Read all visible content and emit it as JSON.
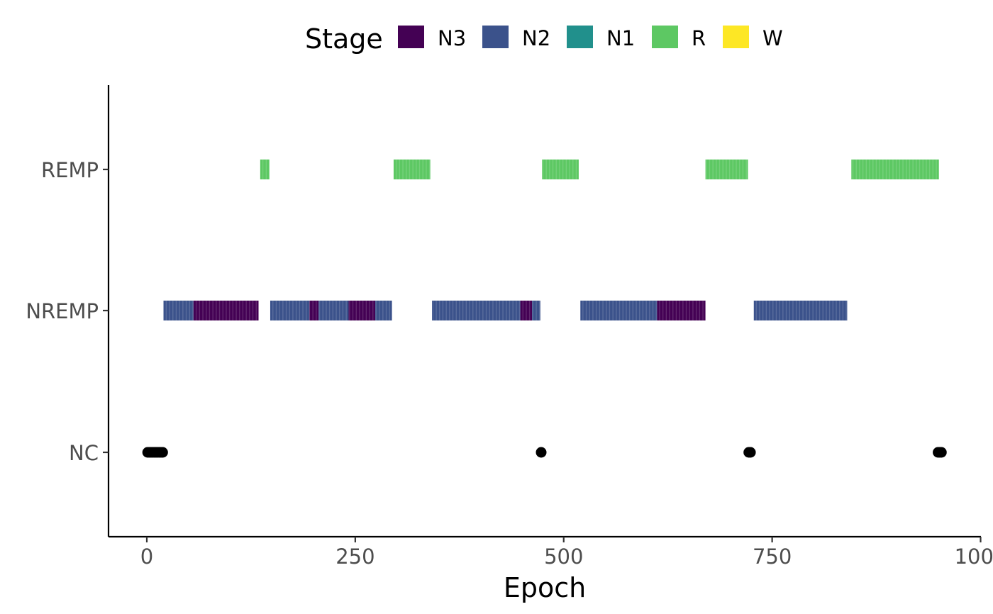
{
  "chart_data": {
    "type": "bar",
    "xlabel": "Epoch",
    "ylabel": "",
    "xlim": [
      -15,
      1000
    ],
    "x_ticks": [
      0,
      250,
      500,
      750,
      1000
    ],
    "x_tick_labels": [
      "0",
      "250",
      "500",
      "750",
      "1000"
    ],
    "categories": [
      "NC",
      "NREMP",
      "REMP"
    ],
    "grid": false,
    "legend": {
      "title": "Stage",
      "position": "top",
      "entries": [
        {
          "label": "N3",
          "color": "#440154"
        },
        {
          "label": "N2",
          "color": "#3B528B"
        },
        {
          "label": "N1",
          "color": "#21908C"
        },
        {
          "label": "R",
          "color": "#5DC863"
        },
        {
          "label": "W",
          "color": "#FDE725"
        }
      ]
    },
    "segments": [
      {
        "period": "NREMP",
        "stage": "N2",
        "start": 20,
        "end": 56
      },
      {
        "period": "NREMP",
        "stage": "N3",
        "start": 56,
        "end": 134
      },
      {
        "period": "REMP",
        "stage": "R",
        "start": 136,
        "end": 147
      },
      {
        "period": "NREMP",
        "stage": "N2",
        "start": 148,
        "end": 195
      },
      {
        "period": "NREMP",
        "stage": "N3",
        "start": 195,
        "end": 206
      },
      {
        "period": "NREMP",
        "stage": "N2",
        "start": 206,
        "end": 242
      },
      {
        "period": "NREMP",
        "stage": "N3",
        "start": 242,
        "end": 274
      },
      {
        "period": "NREMP",
        "stage": "N2",
        "start": 274,
        "end": 294
      },
      {
        "period": "REMP",
        "stage": "R",
        "start": 296,
        "end": 340
      },
      {
        "period": "NREMP",
        "stage": "N2",
        "start": 342,
        "end": 448
      },
      {
        "period": "NREMP",
        "stage": "N3",
        "start": 448,
        "end": 462
      },
      {
        "period": "NREMP",
        "stage": "N2",
        "start": 462,
        "end": 472
      },
      {
        "period": "REMP",
        "stage": "R",
        "start": 474,
        "end": 518
      },
      {
        "period": "NREMP",
        "stage": "N2",
        "start": 520,
        "end": 612
      },
      {
        "period": "NREMP",
        "stage": "N3",
        "start": 612,
        "end": 670
      },
      {
        "period": "REMP",
        "stage": "R",
        "start": 670,
        "end": 721
      },
      {
        "period": "NREMP",
        "stage": "N2",
        "start": 728,
        "end": 840
      },
      {
        "period": "REMP",
        "stage": "R",
        "start": 845,
        "end": 950
      }
    ],
    "nc_points": [
      1,
      3,
      5,
      7,
      9,
      11,
      13,
      15,
      17,
      19,
      473,
      722,
      724,
      949,
      951,
      953
    ]
  }
}
